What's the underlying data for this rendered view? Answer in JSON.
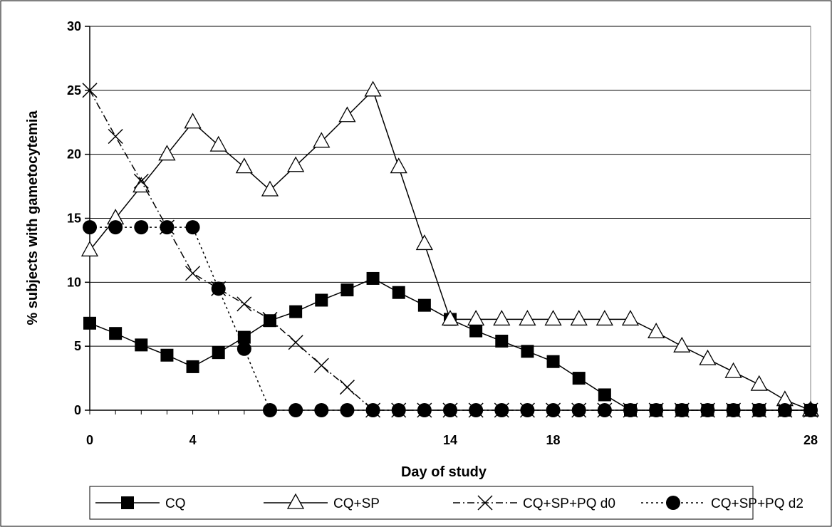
{
  "chart_data": {
    "type": "line",
    "title": "",
    "xlabel": "Day of study",
    "ylabel": "% subjects with gametocytemia",
    "xlim": [
      0,
      28
    ],
    "ylim": [
      0,
      30
    ],
    "xticks": [
      0,
      4,
      14,
      18,
      28
    ],
    "yticks": [
      0,
      5,
      10,
      15,
      20,
      25,
      30
    ],
    "xtick_labels": [
      "0",
      "4",
      "14",
      "18",
      "28"
    ],
    "ytick_labels": [
      "0",
      "5",
      "10",
      "15",
      "20",
      "25",
      "30"
    ],
    "grid": "horizontal",
    "legend_position": "bottom",
    "series": [
      {
        "name": "CQ",
        "marker": "square",
        "line": "solid",
        "x": [
          0,
          1,
          2,
          3,
          4,
          5,
          6,
          7,
          8,
          9,
          10,
          11,
          12,
          13,
          14,
          15,
          16,
          17,
          18,
          19,
          20,
          21,
          22,
          23,
          24,
          25,
          26,
          27,
          28
        ],
        "y": [
          6.8,
          6.0,
          5.1,
          4.3,
          3.4,
          4.5,
          5.7,
          7.0,
          7.7,
          8.6,
          9.4,
          10.3,
          9.2,
          8.2,
          7.1,
          6.2,
          5.4,
          4.6,
          3.8,
          2.5,
          1.2,
          0,
          0,
          0,
          0,
          0,
          0,
          0,
          0
        ]
      },
      {
        "name": "CQ+SP",
        "marker": "triangle",
        "line": "solid",
        "x": [
          0,
          1,
          2,
          3,
          4,
          5,
          6,
          7,
          8,
          9,
          10,
          11,
          12,
          13,
          14,
          15,
          16,
          17,
          18,
          19,
          20,
          21,
          22,
          23,
          24,
          25,
          26,
          27,
          28
        ],
        "y": [
          12.5,
          15.0,
          17.5,
          20.0,
          22.5,
          20.7,
          19.0,
          17.2,
          19.1,
          21.0,
          23.0,
          25.0,
          19.0,
          13.0,
          7.1,
          7.1,
          7.1,
          7.1,
          7.1,
          7.1,
          7.1,
          7.1,
          6.1,
          5.0,
          4.0,
          3.0,
          2.0,
          0.8,
          0
        ]
      },
      {
        "name": "CQ+SP+PQ d0",
        "marker": "x",
        "line": "dash-dot",
        "x": [
          0,
          1,
          2,
          3,
          4,
          5,
          6,
          7,
          8,
          9,
          10,
          11,
          12,
          13,
          14,
          15,
          16,
          17,
          18,
          19,
          20,
          21,
          22,
          23,
          24,
          25,
          26,
          27,
          28
        ],
        "y": [
          25.0,
          21.4,
          17.9,
          14.3,
          10.7,
          9.5,
          8.3,
          7.1,
          5.3,
          3.5,
          1.8,
          0,
          0,
          0,
          0,
          0,
          0,
          0,
          0,
          0,
          0,
          0,
          0,
          0,
          0,
          0,
          0,
          0,
          0
        ]
      },
      {
        "name": "CQ+SP+PQ d2",
        "marker": "circle",
        "line": "dotted",
        "x": [
          0,
          1,
          2,
          3,
          4,
          5,
          6,
          7,
          8,
          9,
          10,
          11,
          12,
          13,
          14,
          15,
          16,
          17,
          18,
          19,
          20,
          21,
          22,
          23,
          24,
          25,
          26,
          27,
          28
        ],
        "y": [
          14.3,
          14.3,
          14.3,
          14.3,
          14.3,
          9.5,
          4.8,
          0,
          0,
          0,
          0,
          0,
          0,
          0,
          0,
          0,
          0,
          0,
          0,
          0,
          0,
          0,
          0,
          0,
          0,
          0,
          0,
          0,
          0
        ]
      }
    ]
  }
}
